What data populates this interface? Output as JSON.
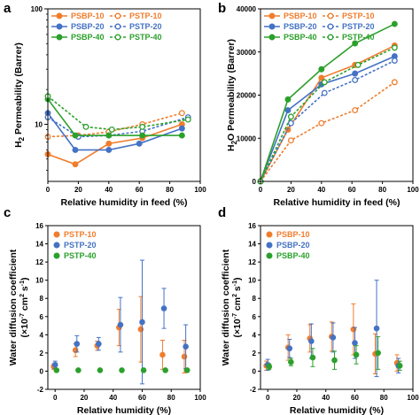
{
  "figure": {
    "panels": [
      "a",
      "b",
      "c",
      "d"
    ]
  },
  "chart_data": [
    {
      "panel": "a",
      "type": "line",
      "xlabel": "Relative humidity in feed (%)",
      "ylabel_main": "H",
      "ylabel_sub": "2",
      "ylabel_rest": " Permeability (Barrer)",
      "x_ticks": [
        "0",
        "20",
        "40",
        "60",
        "80",
        "100"
      ],
      "xlim": [
        0,
        100
      ],
      "y_scale": "log",
      "ylim": [
        3.2,
        100
      ],
      "y_ticks": [
        {
          "value": 10,
          "label": "10"
        },
        {
          "value": 100,
          "label": "100"
        }
      ],
      "legend": {
        "position": "top-left",
        "columns": 2
      },
      "series": [
        {
          "name": "PSBP-10",
          "color": "#F07D2D",
          "style": "solid",
          "marker": "filled",
          "x": [
            0,
            18,
            40,
            62,
            88
          ],
          "y": [
            5.5,
            4.5,
            6.8,
            7.6,
            10.0
          ]
        },
        {
          "name": "PSTP-10",
          "color": "#F07D2D",
          "style": "dashed",
          "marker": "open",
          "x": [
            0,
            20,
            40,
            62,
            88
          ],
          "y": [
            7.8,
            8.0,
            8.6,
            10.0,
            12.5
          ]
        },
        {
          "name": "PSBP-20",
          "color": "#4472C4",
          "style": "solid",
          "marker": "filled",
          "x": [
            0,
            18,
            40,
            60,
            88
          ],
          "y": [
            12.5,
            6.0,
            6.0,
            6.8,
            9.2
          ]
        },
        {
          "name": "PSTP-20",
          "color": "#4472C4",
          "style": "dashed",
          "marker": "open",
          "x": [
            0,
            20,
            40,
            62,
            92
          ],
          "y": [
            11.5,
            7.8,
            8.0,
            8.7,
            11.5
          ]
        },
        {
          "name": "PSBP-40",
          "color": "#2CA02C",
          "style": "solid",
          "marker": "filled",
          "x": [
            0,
            18,
            40,
            62,
            88
          ],
          "y": [
            16.5,
            8.0,
            8.0,
            8.0,
            8.0
          ]
        },
        {
          "name": "PSTP-40",
          "color": "#2CA02C",
          "style": "dashed",
          "marker": "open",
          "x": [
            0,
            25,
            42,
            62,
            92
          ],
          "y": [
            17.5,
            9.5,
            9.0,
            9.5,
            11.0
          ]
        }
      ]
    },
    {
      "panel": "b",
      "type": "line",
      "xlabel": "Relative humidity in feed (%)",
      "ylabel_main": "H",
      "ylabel_sub": "2",
      "ylabel_rest": "O Permeability (Barrer)",
      "x_ticks": [
        "0",
        "20",
        "40",
        "60",
        "80",
        "100"
      ],
      "xlim": [
        0,
        100
      ],
      "ylim": [
        0,
        40000
      ],
      "y_ticks": [
        0,
        10000,
        20000,
        30000,
        40000
      ],
      "legend": {
        "position": "top-left",
        "columns": 2
      },
      "series": [
        {
          "name": "PSBP-10",
          "color": "#F07D2D",
          "style": "solid",
          "marker": "filled",
          "x": [
            0,
            18,
            40,
            62,
            88
          ],
          "y": [
            0,
            12000,
            24000,
            27000,
            31500
          ]
        },
        {
          "name": "PSTP-10",
          "color": "#F07D2D",
          "style": "dashed",
          "marker": "open",
          "x": [
            0,
            20,
            40,
            62,
            88
          ],
          "y": [
            0,
            9500,
            13500,
            16500,
            23000
          ]
        },
        {
          "name": "PSBP-20",
          "color": "#4472C4",
          "style": "solid",
          "marker": "filled",
          "x": [
            0,
            18,
            40,
            62,
            88
          ],
          "y": [
            0,
            16500,
            22500,
            25000,
            29000
          ]
        },
        {
          "name": "PSTP-20",
          "color": "#4472C4",
          "style": "dashed",
          "marker": "open",
          "x": [
            0,
            20,
            42,
            62,
            88
          ],
          "y": [
            0,
            13500,
            20500,
            23500,
            28000
          ]
        },
        {
          "name": "PSBP-40",
          "color": "#2CA02C",
          "style": "solid",
          "marker": "filled",
          "x": [
            0,
            18,
            40,
            62,
            88
          ],
          "y": [
            0,
            19000,
            26000,
            32000,
            36500
          ]
        },
        {
          "name": "PSTP-40",
          "color": "#2CA02C",
          "style": "dashed",
          "marker": "open",
          "x": [
            0,
            20,
            42,
            64,
            88
          ],
          "y": [
            0,
            15000,
            23000,
            27000,
            31000
          ]
        }
      ]
    },
    {
      "panel": "c",
      "type": "scatter",
      "xlabel": "Relative humidity (%)",
      "ylabel_line1": "Water diffusion coefficient",
      "ylabel_line2_pre": "(×10",
      "ylabel_sup1": "-7",
      "ylabel_line2_mid": " cm",
      "ylabel_sup2": "2",
      "ylabel_line2_mid2": " s",
      "ylabel_sup3": "-1",
      "ylabel_line2_post": ")",
      "x_ticks": [
        "0",
        "20",
        "40",
        "60",
        "80",
        "100"
      ],
      "xlim": [
        -5,
        100
      ],
      "ylim": [
        -2,
        16
      ],
      "y_ticks": [
        "-2",
        "0",
        "2",
        "4",
        "6",
        "8",
        "10",
        "12",
        "14",
        "16"
      ],
      "legend": {
        "position": "top-left",
        "columns": 1
      },
      "series": [
        {
          "name": "PSTP-10",
          "color": "#F07D2D",
          "x": [
            0,
            15,
            30,
            45,
            60,
            75,
            90
          ],
          "y": [
            0.5,
            2.3,
            2.8,
            4.8,
            4.6,
            1.8,
            1.6
          ],
          "err": [
            0.3,
            0.7,
            0.5,
            2.0,
            3.6,
            1.6,
            1.8
          ]
        },
        {
          "name": "PSTP-20",
          "color": "#4472C4",
          "x": [
            0,
            15,
            30,
            45,
            60,
            75,
            90
          ],
          "y": [
            0.7,
            3.0,
            3.0,
            5.1,
            5.4,
            6.9,
            2.7
          ],
          "err": [
            0.4,
            0.9,
            0.7,
            3.0,
            6.8,
            2.2,
            2.4
          ]
        },
        {
          "name": "PSTP-40",
          "color": "#2CA02C",
          "x": [
            0,
            15,
            30,
            45,
            60,
            75,
            90
          ],
          "y": [
            0.1,
            0.1,
            0.1,
            0.1,
            0.1,
            0.1,
            0.1
          ],
          "err": [
            0.1,
            0.1,
            0.1,
            0.1,
            0.1,
            0.1,
            0.1
          ]
        }
      ]
    },
    {
      "panel": "d",
      "type": "scatter",
      "xlabel": "Relative humidity (%)",
      "ylabel_line1": "Water diffusion coefficient",
      "ylabel_line2_pre": "(×10",
      "ylabel_sup1": "-7",
      "ylabel_line2_mid": " cm",
      "ylabel_sup2": "2",
      "ylabel_line2_mid2": " s",
      "ylabel_sup3": "-1",
      "ylabel_line2_post": ")",
      "x_ticks": [
        "0",
        "20",
        "40",
        "60",
        "80",
        "100"
      ],
      "xlim": [
        -5,
        100
      ],
      "ylim": [
        -2,
        16
      ],
      "y_ticks": [
        "-2",
        "0",
        "2",
        "4",
        "6",
        "8",
        "10",
        "12",
        "14",
        "16"
      ],
      "legend": {
        "position": "top-left",
        "columns": 1
      },
      "series": [
        {
          "name": "PSBP-10",
          "color": "#F07D2D",
          "x": [
            0,
            15,
            30,
            45,
            60,
            75,
            90
          ],
          "y": [
            0.6,
            2.6,
            3.6,
            3.8,
            4.6,
            1.9,
            0.9
          ],
          "err": [
            0.5,
            1.4,
            1.5,
            1.6,
            2.8,
            2.2,
            0.9
          ]
        },
        {
          "name": "PSBP-20",
          "color": "#4472C4",
          "x": [
            0,
            15,
            30,
            45,
            60,
            75,
            90
          ],
          "y": [
            0.7,
            2.5,
            3.3,
            3.7,
            3.1,
            4.7,
            0.6
          ],
          "err": [
            0.6,
            1.0,
            1.9,
            1.6,
            1.7,
            5.3,
            0.8
          ]
        },
        {
          "name": "PSBP-40",
          "color": "#2CA02C",
          "x": [
            0,
            15,
            30,
            45,
            60,
            75,
            90
          ],
          "y": [
            0.5,
            1.0,
            1.5,
            1.2,
            1.8,
            2.0,
            0.6
          ],
          "err": [
            0.3,
            0.4,
            1.0,
            1.0,
            1.0,
            1.8,
            0.5
          ]
        }
      ]
    }
  ]
}
